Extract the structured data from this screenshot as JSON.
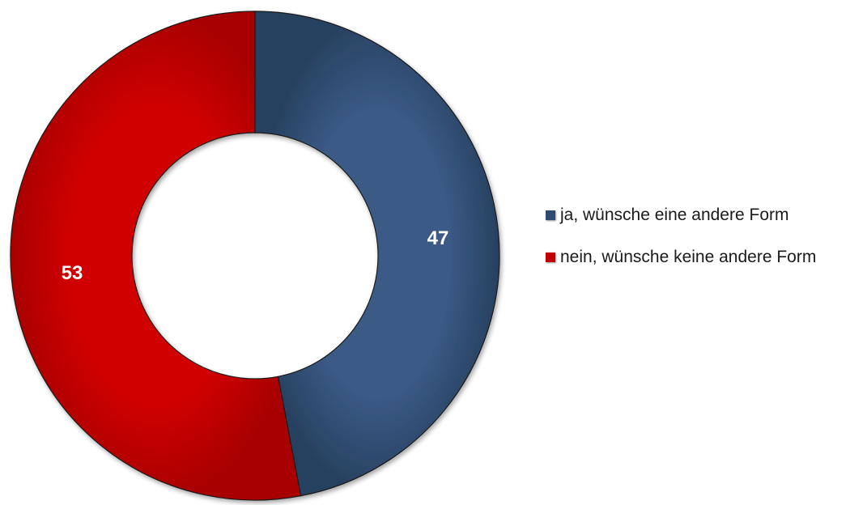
{
  "chart_data": {
    "type": "pie",
    "donut": true,
    "categories": [
      "ja, wünsche eine andere Form",
      "nein, wünsche keine andere Form"
    ],
    "values": [
      47,
      53
    ],
    "colors": [
      "#2f4b72",
      "#c00000"
    ],
    "data_labels": [
      "47",
      "53"
    ],
    "legend_position": "right",
    "title": ""
  }
}
